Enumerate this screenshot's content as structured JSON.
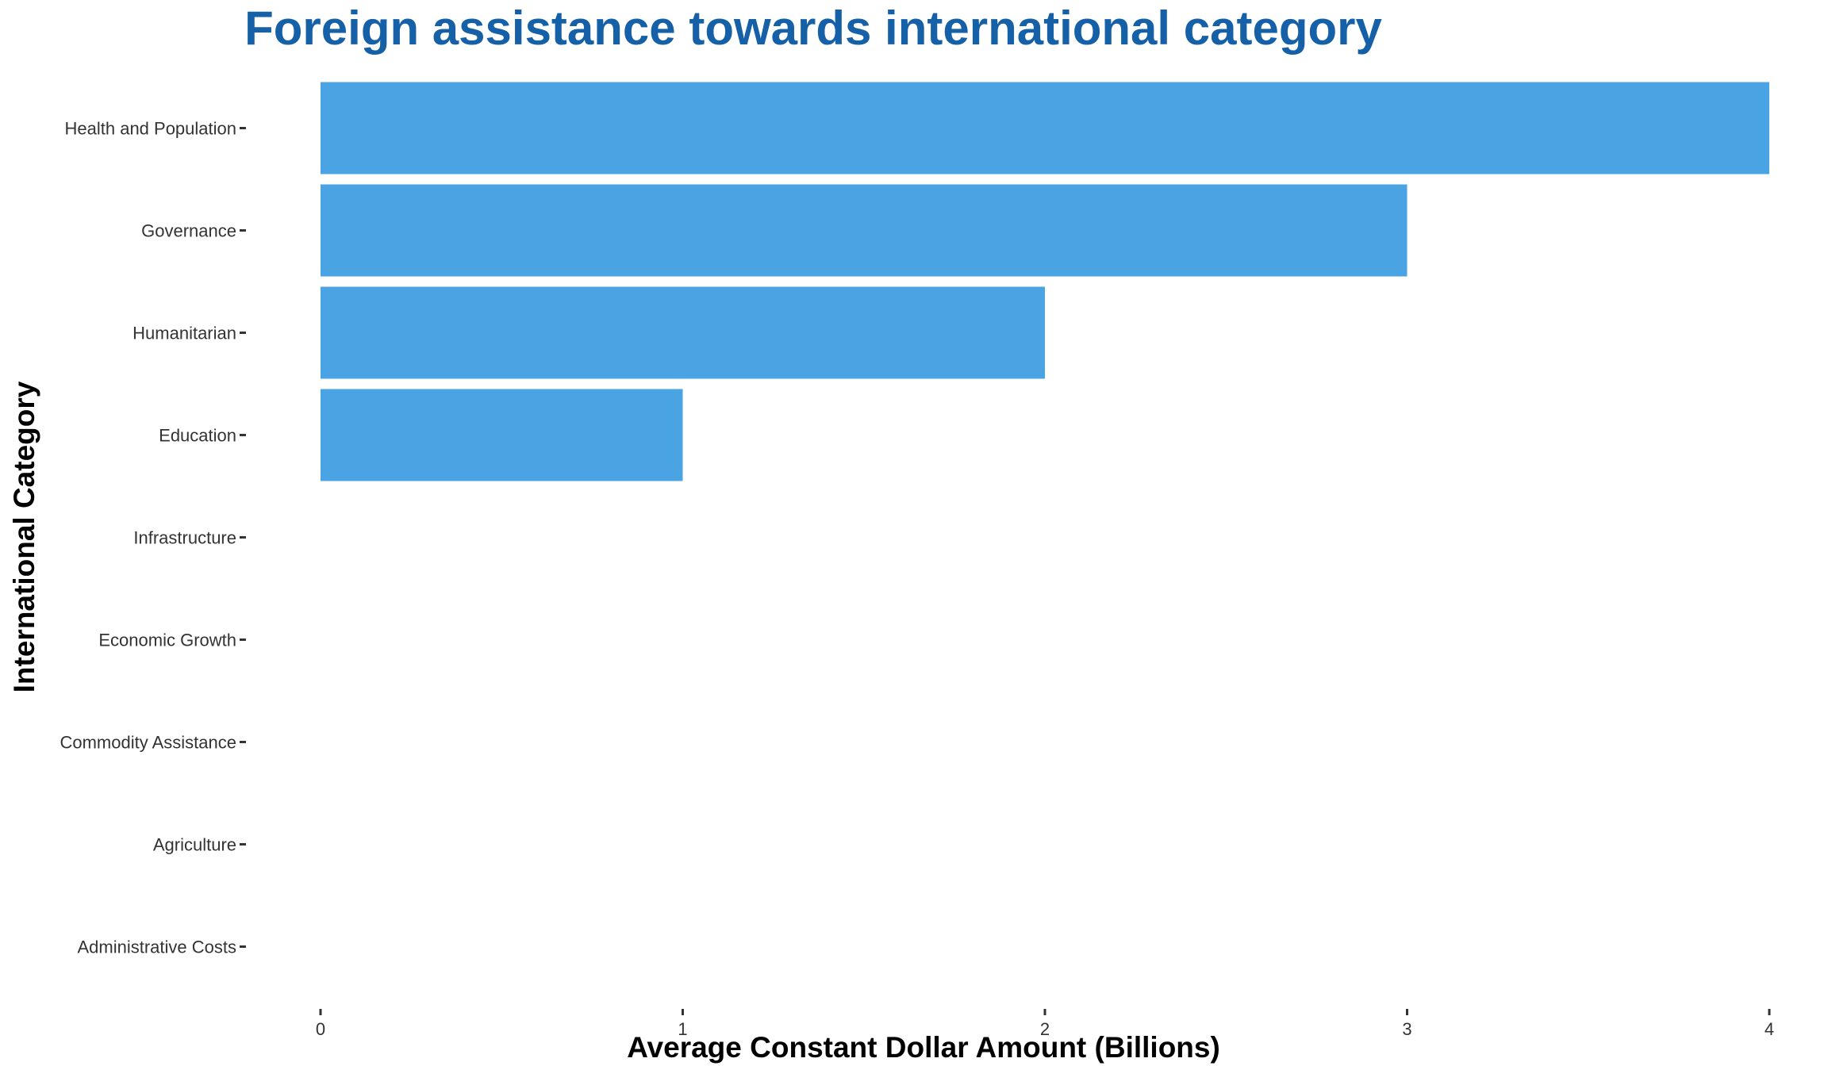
{
  "chart_data": {
    "type": "bar",
    "orientation": "horizontal",
    "title": "Foreign assistance towards international category",
    "xlabel": "Average Constant Dollar Amount (Billions)",
    "ylabel": "International Category",
    "categories": [
      "Health and Population",
      "Governance",
      "Humanitarian",
      "Education",
      "Infrastructure",
      "Economic Growth",
      "Commodity Assistance",
      "Agriculture",
      "Administrative Costs"
    ],
    "values": [
      4,
      3,
      2,
      1,
      0,
      0,
      0,
      0,
      0
    ],
    "xlim": [
      0,
      4
    ],
    "xticks": [
      "0",
      "1",
      "2",
      "3",
      "4"
    ],
    "grid": false,
    "legend": "none"
  },
  "colors": {
    "bar": "#4aa3e2",
    "title": "#1560a6"
  }
}
